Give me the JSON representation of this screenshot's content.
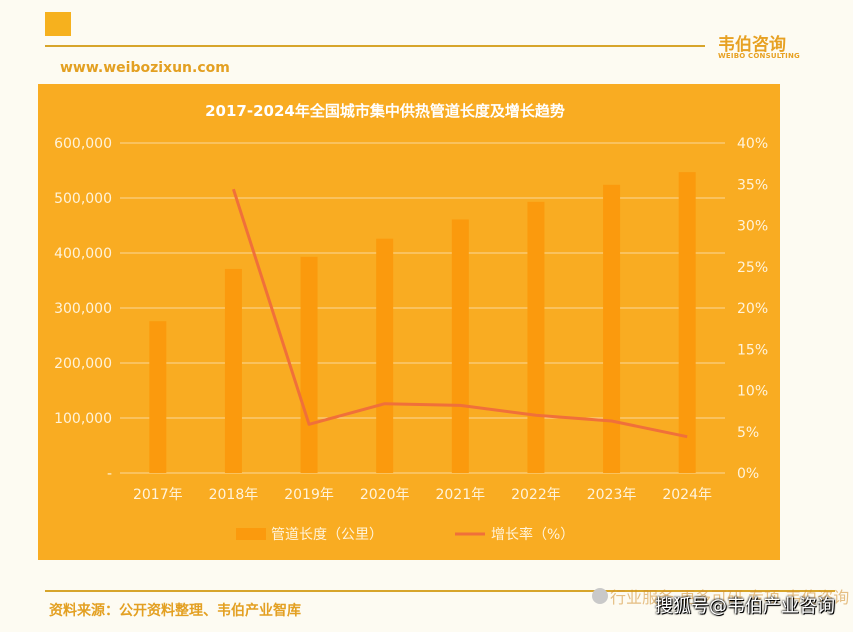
{
  "header": {
    "brand_cn": "韦伯咨询",
    "brand_en": "WEIBO CONSULTING",
    "website": "www.weibozixun.com"
  },
  "footer": {
    "source": "资料来源：公开资料整理、韦伯产业智库",
    "watermark_faded": "行业服务 更多可研 专项 韦伯咨询",
    "watermark_main": "搜狐号@韦伯产业咨询"
  },
  "colors": {
    "panel": "#f9ac22",
    "bar": "#fb9a0d",
    "line": "#f0703a",
    "grid": "#fcd99a"
  },
  "chart_data": {
    "type": "bar",
    "title": "2017-2024年全国城市集中供热管道长度及增长趋势",
    "categories": [
      "2017年",
      "2018年",
      "2019年",
      "2020年",
      "2021年",
      "2022年",
      "2023年",
      "2024年"
    ],
    "series": [
      {
        "name": "管道长度（公里）",
        "type": "bar",
        "axis": "left",
        "values": [
          276000,
          371000,
          393000,
          426000,
          461000,
          493000,
          524000,
          547000
        ]
      },
      {
        "name": "增长率（%）",
        "type": "line",
        "axis": "right",
        "values": [
          null,
          34.4,
          5.9,
          8.4,
          8.2,
          7.0,
          6.3,
          4.4
        ]
      }
    ],
    "y_left": {
      "ylim": [
        0,
        600000
      ],
      "ticks": [
        "-",
        "100,000",
        "200,000",
        "300,000",
        "400,000",
        "500,000",
        "600,000"
      ]
    },
    "y_right": {
      "ylim": [
        0,
        40
      ],
      "ticks": [
        "0%",
        "5%",
        "10%",
        "15%",
        "20%",
        "25%",
        "30%",
        "35%",
        "40%"
      ]
    },
    "grid": true,
    "legend": "bottom"
  }
}
